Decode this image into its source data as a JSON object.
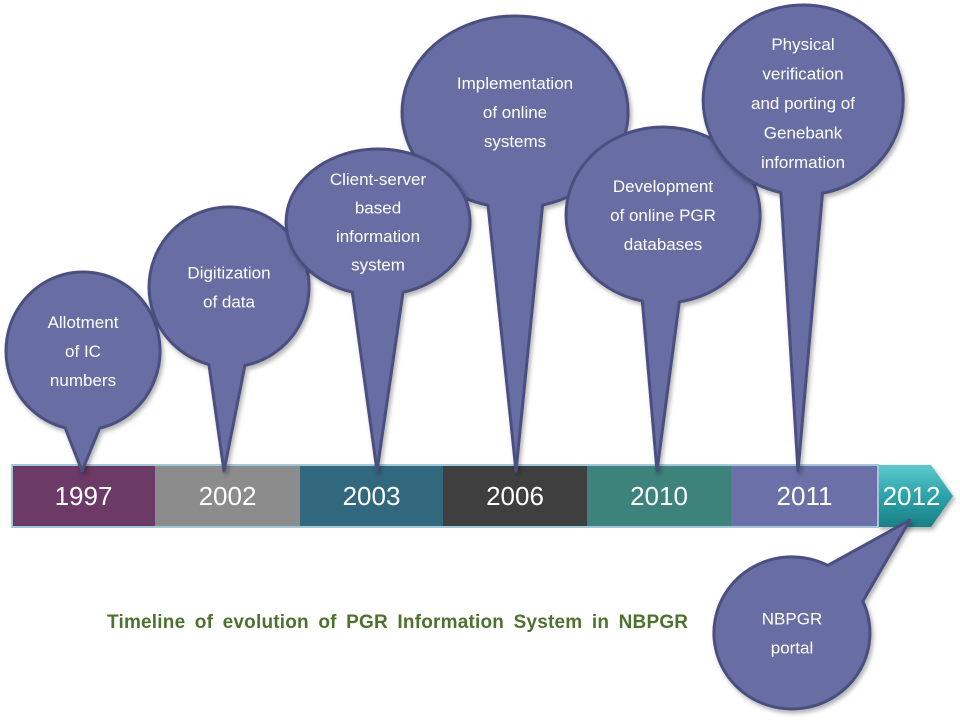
{
  "caption": "Timeline of evolution of PGR Information System in NBPGR",
  "colors": {
    "balloon_fill": "#686ea3",
    "balloon_border": "#4b5080",
    "balloon_text": "#ffffff",
    "year_text": "#ffffff",
    "caption_text": "#4d7230",
    "bar_outline": "#a3c7d6",
    "arrow_top": "#5ec9cc",
    "arrow_mid": "#2ea7ac",
    "arrow_bottom": "#1b7f86"
  },
  "timeline": {
    "segments": [
      {
        "year": "1997",
        "color": "#6b3a67",
        "shape": "rect"
      },
      {
        "year": "2002",
        "color": "#8c8c8c",
        "shape": "rect"
      },
      {
        "year": "2003",
        "color": "#32687e",
        "shape": "rect"
      },
      {
        "year": "2006",
        "color": "#3f3f3f",
        "shape": "rect"
      },
      {
        "year": "2010",
        "color": "#3d837c",
        "shape": "rect"
      },
      {
        "year": "2011",
        "color": "#6b70a8",
        "shape": "rect"
      },
      {
        "year": "2012",
        "color": "teal-gradient",
        "shape": "arrow"
      }
    ]
  },
  "balloons": [
    {
      "name": "allotment-of-ic-numbers",
      "lines": [
        "Allotment",
        "of IC",
        "numbers"
      ],
      "points_to": "1997"
    },
    {
      "name": "digitization-of-data",
      "lines": [
        "Digitization",
        "of data"
      ],
      "points_to": "2002"
    },
    {
      "name": "client-server-based-information-system",
      "lines": [
        "Client-server",
        "based",
        "information",
        "system"
      ],
      "points_to": "2003"
    },
    {
      "name": "implementation-of-online-systems",
      "lines": [
        "Implementation",
        "of online",
        "systems"
      ],
      "points_to": "2006"
    },
    {
      "name": "development-of-online-pgr-databases",
      "lines": [
        "Development",
        "of online PGR",
        "databases"
      ],
      "points_to": "2010"
    },
    {
      "name": "physical-verification-and-porting-of-genebank-information",
      "lines": [
        "Physical",
        "verification",
        "and porting of",
        "Genebank",
        "information"
      ],
      "points_to": "2011"
    },
    {
      "name": "nbpgr-portal",
      "lines": [
        "NBPGR",
        "portal"
      ],
      "points_to": "2012"
    }
  ]
}
